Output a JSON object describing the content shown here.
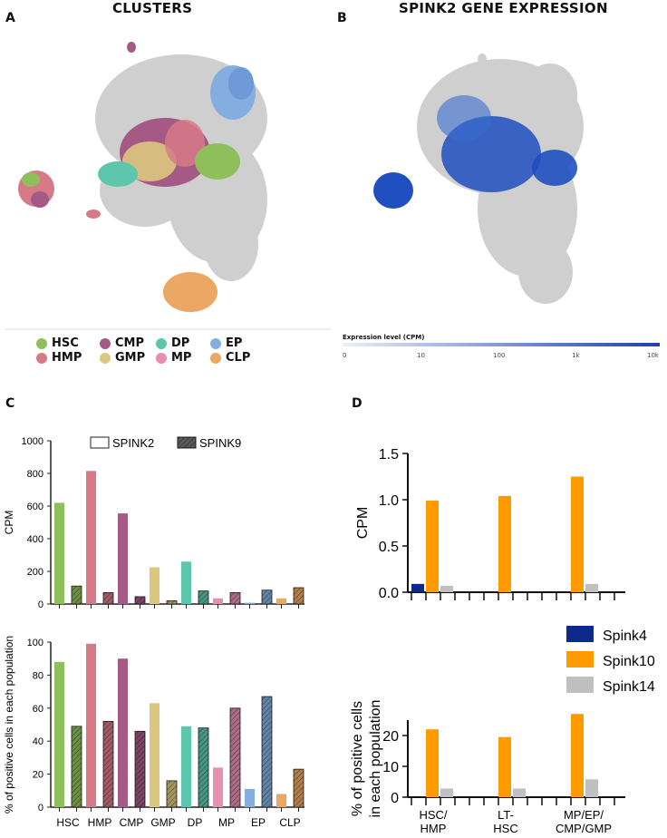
{
  "panels": {
    "A": {
      "letter": "A",
      "title": "CLUSTERS"
    },
    "B": {
      "letter": "B",
      "title": "SPINK2 GENE EXPRESSION"
    },
    "C": {
      "letter": "C"
    },
    "D": {
      "letter": "D"
    }
  },
  "colors": {
    "HSC": "#8fbf5a",
    "HMP": "#d77a88",
    "CMP": "#a55a86",
    "GMP": "#dcc77e",
    "DP": "#5cc7ad",
    "MP": "#e68fb0",
    "EP": "#85aee0",
    "CLP": "#eba763",
    "Spink4": "#0d2a8a",
    "Spink10": "#ff9a00",
    "Spink14": "#c0c0c0",
    "expr_low": "#e6f2fb",
    "expr_high": "#1f3fb0",
    "umap_gray": "#cfcfcf"
  },
  "cluster_legend": [
    {
      "label": "HSC",
      "color": "#8fbf5a"
    },
    {
      "label": "HMP",
      "color": "#d77a88"
    },
    {
      "label": "CMP",
      "color": "#a55a86"
    },
    {
      "label": "GMP",
      "color": "#dcc77e"
    },
    {
      "label": "DP",
      "color": "#5cc7ad"
    },
    {
      "label": "MP",
      "color": "#e68fb0"
    },
    {
      "label": "EP",
      "color": "#85aee0"
    },
    {
      "label": "CLP",
      "color": "#eba763"
    }
  ],
  "expression_scale": {
    "title": "Expression level (CPM)",
    "ticks": [
      "0",
      "10",
      "100",
      "1k",
      "10k"
    ]
  },
  "chart_data": [
    {
      "id": "C-top",
      "type": "bar",
      "ylabel": "CPM",
      "ylim": [
        0,
        1000
      ],
      "yticks": [
        0,
        200,
        400,
        600,
        800,
        1000
      ],
      "categories": [
        "HSC",
        "HMP",
        "CMP",
        "GMP",
        "DP",
        "MP",
        "EP",
        "CLP"
      ],
      "legend": [
        "SPINK2",
        "SPINK9"
      ],
      "series": [
        {
          "name": "SPINK2",
          "values": [
            620,
            815,
            555,
            225,
            260,
            35,
            8,
            35
          ]
        },
        {
          "name": "SPINK9",
          "values": [
            110,
            70,
            45,
            20,
            80,
            70,
            85,
            100
          ]
        }
      ]
    },
    {
      "id": "C-bottom",
      "type": "bar",
      "ylabel": "% of positive cells in each population",
      "ylim": [
        0,
        100
      ],
      "yticks": [
        0,
        20,
        40,
        60,
        80,
        100
      ],
      "categories": [
        "HSC",
        "HMP",
        "CMP",
        "GMP",
        "DP",
        "MP",
        "EP",
        "CLP"
      ],
      "series": [
        {
          "name": "SPINK2",
          "values": [
            88,
            99,
            90,
            63,
            49,
            24,
            11,
            8
          ]
        },
        {
          "name": "SPINK9",
          "values": [
            49,
            52,
            46,
            16,
            48,
            60,
            67,
            23
          ]
        }
      ]
    },
    {
      "id": "D-top",
      "type": "bar",
      "ylabel": "CPM",
      "ylim": [
        0,
        1.5
      ],
      "yticks": [
        "0.0",
        "0.5",
        "1.0",
        "1.5"
      ],
      "categories": [
        "HSC/ HMP",
        "LT- HSC",
        "MP/EP/ CMP/GMP"
      ],
      "series": [
        {
          "name": "Spink4",
          "values": [
            0.09,
            0,
            0
          ]
        },
        {
          "name": "Spink10",
          "values": [
            0.99,
            1.04,
            1.25
          ]
        },
        {
          "name": "Spink14",
          "values": [
            0.07,
            0,
            0.09
          ]
        }
      ]
    },
    {
      "id": "D-bottom",
      "type": "bar",
      "ylabel": "% of positive cells in each population",
      "ylim": [
        0,
        25
      ],
      "yticks": [
        0,
        10,
        20
      ],
      "categories": [
        "HSC/ HMP",
        "LT- HSC",
        "MP/EP/ CMP/GMP"
      ],
      "series": [
        {
          "name": "Spink4",
          "values": [
            0,
            0,
            0
          ]
        },
        {
          "name": "Spink10",
          "values": [
            22,
            19.5,
            27
          ]
        },
        {
          "name": "Spink14",
          "values": [
            2.8,
            2.8,
            5.8
          ]
        }
      ],
      "legend": [
        "Spink4",
        "Spink10",
        "Spink14"
      ]
    }
  ]
}
